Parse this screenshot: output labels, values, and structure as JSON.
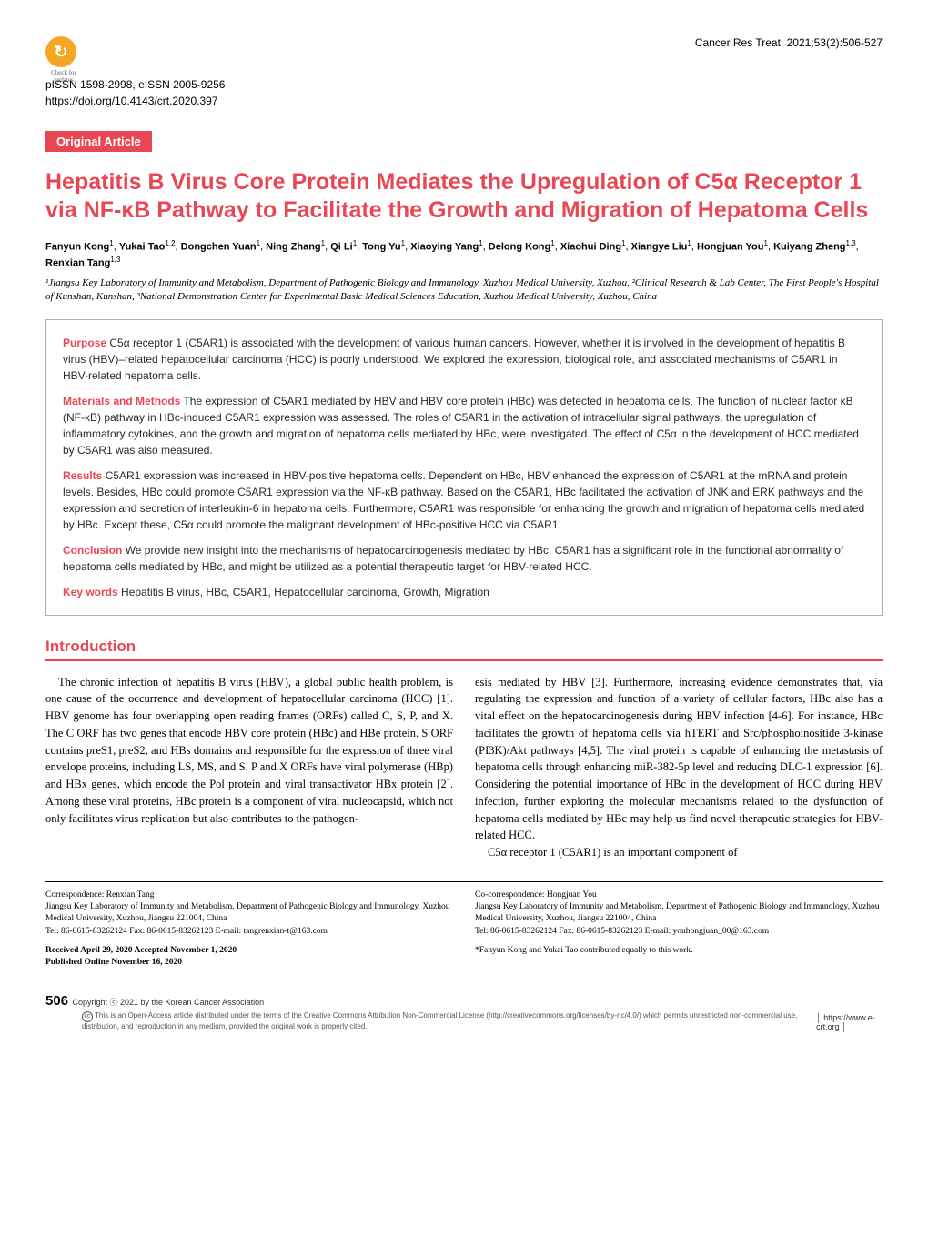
{
  "header": {
    "check_updates": "Check for updates",
    "issn": "pISSN 1598-2998, eISSN 2005-9256",
    "doi": "https://doi.org/10.4143/crt.2020.397",
    "citation": "Cancer Res Treat. 2021;53(2):506-527"
  },
  "article": {
    "type_badge": "Original Article",
    "title": "Hepatitis B Virus Core Protein Mediates the Upregulation of C5α Receptor 1 via NF-κB Pathway to Facilitate the Growth and Migration of Hepatoma Cells",
    "authors_html": "Fanyun Kong¹, Yukai Tao¹·², Dongchen Yuan¹, Ning Zhang¹, Qi Li¹, Tong Yu¹, Xiaoying Yang¹, Delong Kong¹, Xiaohui Ding¹, Xiangye Liu¹, Hongjuan You¹, Kuiyang Zheng¹·³, Renxian Tang¹·³",
    "affiliations": "¹Jiangsu Key Laboratory of Immunity and Metabolism, Department of Pathogenic Biology and Immunology, Xuzhou Medical University, Xuzhou, ²Clinical Research & Lab Center, The First People's Hospital of Kunshan, Kunshan, ³National Demonstration Center for Experimental Basic Medical Sciences Education, Xuzhou Medical University, Xuzhou, China"
  },
  "abstract": {
    "purpose_label": "Purpose",
    "purpose_text": " C5α receptor 1 (C5AR1) is associated with the development of various human cancers. However, whether it is involved in the development of hepatitis B virus (HBV)–related hepatocellular carcinoma (HCC) is poorly understood. We explored the expression, biological role, and associated mechanisms of C5AR1 in HBV-related hepatoma cells.",
    "methods_label": "Materials and Methods",
    "methods_text": " The expression of C5AR1 mediated by HBV and HBV core protein (HBc) was detected in hepatoma cells. The function of nuclear factor κB (NF-κB) pathway in HBc-induced C5AR1 expression was assessed. The roles of C5AR1 in the activation of intracellular signal pathways, the upregulation of inflammatory cytokines, and the growth and migration of hepatoma cells mediated by HBc, were investigated. The effect of C5α in the development of HCC mediated by C5AR1 was also measured.",
    "results_label": "Results",
    "results_text": " C5AR1 expression was increased in HBV-positive hepatoma cells. Dependent on HBc, HBV enhanced the expression of C5AR1 at the mRNA and protein levels. Besides, HBc could promote C5AR1 expression via the NF-κB pathway. Based on the C5AR1, HBc facilitated the activation of JNK and ERK pathways and the expression and secretion of interleukin-6 in hepatoma cells. Furthermore, C5AR1 was responsible for enhancing the growth and migration of hepatoma cells mediated by HBc. Except these, C5α could promote the malignant development of HBc-positive HCC via C5AR1.",
    "conclusion_label": "Conclusion",
    "conclusion_text": " We provide new insight into the mechanisms of hepatocarcinogenesis mediated by HBc. C5AR1 has a significant role in the functional abnormality of hepatoma cells mediated by HBc, and might be utilized as a potential therapeutic target for HBV-related HCC.",
    "keywords_label": "Key words",
    "keywords_text": " Hepatitis B virus, HBc, C5AR1, Hepatocellular carcinoma, Growth, Migration"
  },
  "section": {
    "introduction_heading": "Introduction",
    "col1_text": "The chronic infection of hepatitis B virus (HBV), a global public health problem, is one cause of the occurrence and development of hepatocellular carcinoma (HCC) [1]. HBV genome has four overlapping open reading frames (ORFs) called C, S, P, and X. The C ORF has two genes that encode HBV core protein (HBc) and HBe protein. S ORF contains preS1, preS2, and HBs domains and responsible for the expression of three viral envelope proteins, including LS, MS, and S. P and X ORFs have viral polymerase (HBp) and HBx genes, which encode the Pol protein and viral transactivator HBx protein [2]. Among these viral proteins, HBc protein is a component of viral nucleocapsid, which not only facilitates virus replication but also contributes to the pathogen-",
    "col2_text1": "esis mediated by HBV [3]. Furthermore, increasing evidence demonstrates that, via regulating the expression and function of a variety of cellular factors, HBc also has a vital effect on the hepatocarcinogenesis during HBV infection [4-6]. For instance, HBc facilitates the growth of hepatoma cells via hTERT and Src/phosphoinositide 3-kinase (PI3K)/Akt pathways [4,5]. The viral protein is capable of enhancing the metastasis of hepatoma cells through enhancing miR-382-5p level and reducing DLC-1 expression [6]. Considering the potential importance of HBc in the development of HCC during HBV infection, further exploring the molecular mechanisms related to the dysfunction of hepatoma cells mediated by HBc may help us find novel therapeutic strategies for HBV-related HCC.",
    "col2_text2": "C5α receptor 1 (C5AR1) is an important component of"
  },
  "footer": {
    "corr1_name": "Correspondence: Renxian Tang",
    "corr1_addr": "Jiangsu Key Laboratory of Immunity and Metabolism, Department of Pathogenic Biology and Immunology, Xuzhou Medical University, Xuzhou, Jiangsu 221004, China",
    "corr1_contact": "Tel: 86-0615-83262124  Fax: 86-0615-83262123  E-mail: tangrenxian-t@163.com",
    "received": "Received  April 29, 2020  Accepted  November 1, 2020",
    "published": "Published Online  November 16, 2020",
    "corr2_name": "Co-correspondence: Hongjuan You",
    "corr2_addr": "Jiangsu Key Laboratory of Immunity and Metabolism, Department of Pathogenic Biology and Immunology, Xuzhou Medical University, Xuzhou, Jiangsu 221004, China",
    "corr2_contact": "Tel: 86-0615-83262124  Fax: 86-0615-83262123  E-mail: youhongjuan_00@163.com",
    "equal_contrib": "*Fanyun Kong and Yukai Tao contributed equally to this work.",
    "page_number": "506",
    "copyright": " Copyright ⓒ 2021 by  the Korean Cancer Association",
    "license": "This is an Open-Access article distributed under the terms of the Creative Commons Attribution Non-Commercial License (http://creativecommons.org/licenses/by-nc/4.0/) which permits unrestricted non-commercial use, distribution, and reproduction in any medium, provided the original work is properly cited.",
    "website": "│ https://www.e-crt.org │"
  },
  "colors": {
    "accent": "#e84855",
    "check_bg": "#f5a623",
    "box_border": "#b0b0b0"
  }
}
